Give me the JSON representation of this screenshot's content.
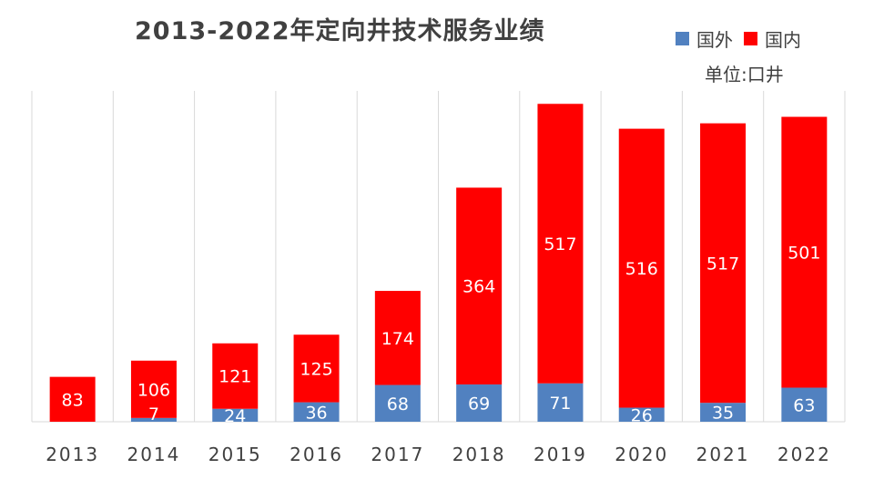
{
  "chart_data": {
    "type": "bar",
    "stacked": true,
    "title": "2013-2022年定向井技术服务业绩",
    "unit": "单位:口井",
    "categories": [
      "2013",
      "2014",
      "2015",
      "2016",
      "2017",
      "2018",
      "2019",
      "2020",
      "2021",
      "2022"
    ],
    "series": [
      {
        "name": "国外",
        "color": "#5181c0",
        "values": [
          0,
          7,
          24,
          36,
          68,
          69,
          71,
          26,
          35,
          63
        ]
      },
      {
        "name": "国内",
        "color": "#ff0000",
        "values": [
          83,
          106,
          121,
          125,
          174,
          364,
          517,
          516,
          517,
          501
        ]
      }
    ],
    "ylim": [
      0,
      700
    ],
    "grid": "vertical",
    "legend_position": "top-right"
  }
}
